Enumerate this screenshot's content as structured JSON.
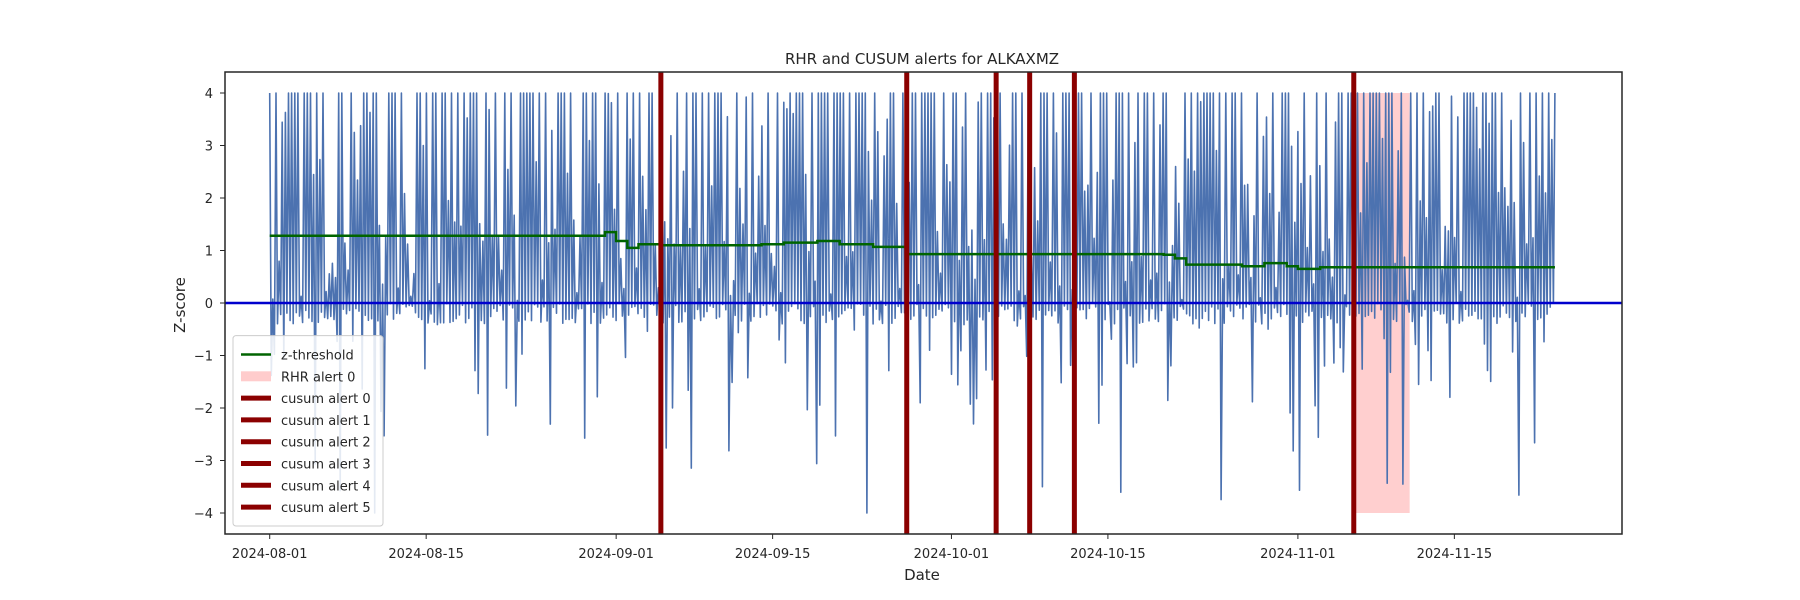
{
  "chart_data": {
    "type": "line",
    "title": "RHR and CUSUM alerts for ALKAXMZ",
    "xlabel": "Date",
    "ylabel": "Z-score",
    "xlim": [
      "2024-07-28",
      "2024-11-30"
    ],
    "ylim": [
      -4.4,
      4.4
    ],
    "x_ticks": [
      "2024-08-01",
      "2024-08-15",
      "2024-09-01",
      "2024-09-15",
      "2024-10-01",
      "2024-10-15",
      "2024-11-01",
      "2024-11-15"
    ],
    "y_ticks": [
      -4,
      -3,
      -2,
      -1,
      0,
      1,
      2,
      3,
      4
    ],
    "grid": false,
    "legend_position": "lower-left",
    "series": [
      {
        "name": "z-threshold",
        "color": "#006400",
        "points": [
          [
            "2024-08-01",
            1.28
          ],
          [
            "2024-08-30",
            1.28
          ],
          [
            "2024-08-31",
            1.35
          ],
          [
            "2024-09-01",
            1.18
          ],
          [
            "2024-09-02",
            1.05
          ],
          [
            "2024-09-03",
            1.12
          ],
          [
            "2024-09-05",
            1.1
          ],
          [
            "2024-09-14",
            1.12
          ],
          [
            "2024-09-16",
            1.15
          ],
          [
            "2024-09-19",
            1.18
          ],
          [
            "2024-09-21",
            1.12
          ],
          [
            "2024-09-24",
            1.07
          ],
          [
            "2024-09-27",
            0.93
          ],
          [
            "2024-10-20",
            0.92
          ],
          [
            "2024-10-21",
            0.85
          ],
          [
            "2024-10-22",
            0.73
          ],
          [
            "2024-10-27",
            0.7
          ],
          [
            "2024-10-29",
            0.76
          ],
          [
            "2024-10-31",
            0.7
          ],
          [
            "2024-11-01",
            0.65
          ],
          [
            "2024-11-03",
            0.68
          ],
          [
            "2024-11-24",
            0.68
          ]
        ]
      }
    ],
    "rhr_series": {
      "name": "",
      "color": "#4c72b0",
      "start": "2024-08-01",
      "end": "2024-11-24",
      "seed": 7,
      "clip": [
        -4,
        4
      ]
    },
    "rhr_alerts": [
      {
        "name": "RHR alert 0",
        "start": "2024-11-06",
        "end": "2024-11-11",
        "ymin": -4,
        "ymax": 4,
        "color": "#ffcccc"
      }
    ],
    "cusum_alerts": [
      {
        "name": "cusum alert 0",
        "date": "2024-09-05",
        "color": "#8b0000"
      },
      {
        "name": "cusum alert 1",
        "date": "2024-09-27",
        "color": "#8b0000"
      },
      {
        "name": "cusum alert 2",
        "date": "2024-10-05",
        "color": "#8b0000"
      },
      {
        "name": "cusum alert 3",
        "date": "2024-10-08",
        "color": "#8b0000"
      },
      {
        "name": "cusum alert 4",
        "date": "2024-10-12",
        "color": "#8b0000"
      },
      {
        "name": "cusum alert 5",
        "date": "2024-11-06",
        "color": "#8b0000"
      }
    ],
    "zero_line": {
      "y": 0,
      "color": "#0000cd"
    }
  }
}
